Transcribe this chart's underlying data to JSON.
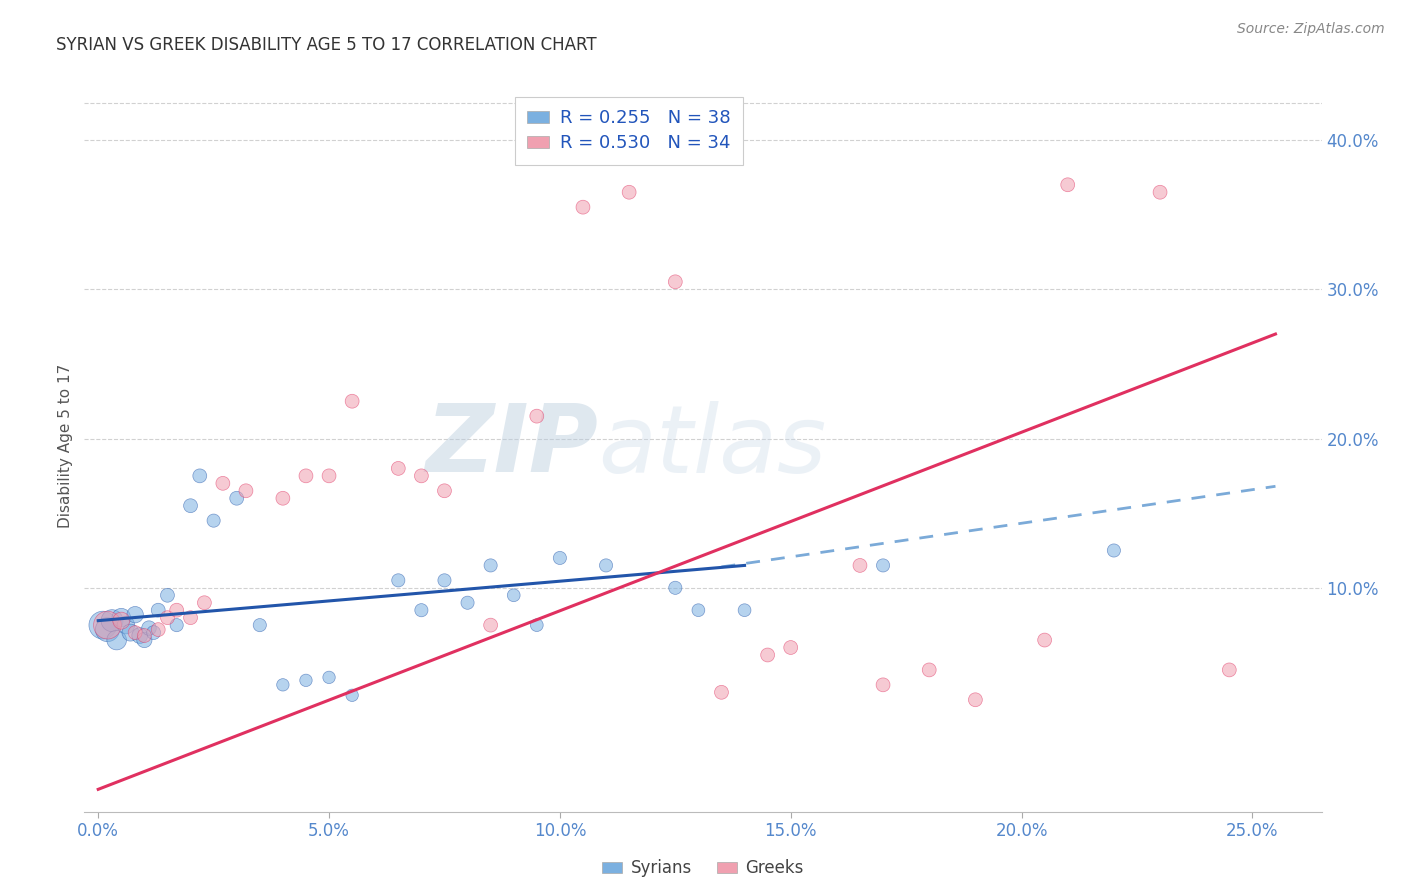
{
  "title": "SYRIAN VS GREEK DISABILITY AGE 5 TO 17 CORRELATION CHART",
  "source": "Source: ZipAtlas.com",
  "xlabel_ticks": [
    "0.0%",
    "5.0%",
    "10.0%",
    "15.0%",
    "20.0%",
    "25.0%"
  ],
  "xlabel_vals": [
    0.0,
    5.0,
    10.0,
    15.0,
    20.0,
    25.0
  ],
  "ylabel_right_ticks": [
    "10.0%",
    "20.0%",
    "30.0%",
    "40.0%"
  ],
  "ylabel_right_vals": [
    10.0,
    20.0,
    30.0,
    40.0
  ],
  "ylabel_left": "Disability Age 5 to 17",
  "xlim": [
    -0.3,
    26.5
  ],
  "ylim": [
    -5.0,
    44.0
  ],
  "legend_r_blue": "R = 0.255",
  "legend_n_blue": "N = 38",
  "legend_r_pink": "R = 0.530",
  "legend_n_pink": "N = 34",
  "syrians_x": [
    0.1,
    0.2,
    0.3,
    0.4,
    0.5,
    0.6,
    0.7,
    0.8,
    0.9,
    1.0,
    1.1,
    1.2,
    1.3,
    1.5,
    1.7,
    2.0,
    2.2,
    2.5,
    3.0,
    3.5,
    4.0,
    4.5,
    5.0,
    5.5,
    6.5,
    7.0,
    7.5,
    8.0,
    8.5,
    9.0,
    9.5,
    10.0,
    11.0,
    12.5,
    13.0,
    14.0,
    17.0,
    22.0
  ],
  "syrians_y": [
    7.5,
    7.2,
    7.8,
    6.5,
    8.0,
    7.5,
    7.0,
    8.2,
    6.8,
    6.5,
    7.3,
    7.0,
    8.5,
    9.5,
    7.5,
    15.5,
    17.5,
    14.5,
    16.0,
    7.5,
    3.5,
    3.8,
    4.0,
    2.8,
    10.5,
    8.5,
    10.5,
    9.0,
    11.5,
    9.5,
    7.5,
    12.0,
    11.5,
    10.0,
    8.5,
    8.5,
    11.5,
    12.5
  ],
  "syrians_size": [
    400,
    300,
    250,
    200,
    180,
    160,
    150,
    140,
    130,
    120,
    110,
    100,
    100,
    100,
    90,
    100,
    100,
    90,
    100,
    90,
    80,
    80,
    80,
    80,
    90,
    90,
    90,
    90,
    90,
    85,
    85,
    90,
    90,
    90,
    85,
    85,
    90,
    90
  ],
  "greeks_x": [
    0.2,
    0.5,
    0.8,
    1.0,
    1.3,
    1.5,
    1.7,
    2.0,
    2.3,
    2.7,
    3.2,
    4.0,
    4.5,
    5.0,
    5.5,
    6.5,
    7.0,
    7.5,
    8.5,
    9.5,
    10.5,
    11.5,
    12.5,
    13.5,
    14.5,
    15.0,
    16.5,
    17.0,
    18.0,
    19.0,
    20.5,
    21.0,
    23.0,
    24.5
  ],
  "greeks_y": [
    7.5,
    7.8,
    7.0,
    6.8,
    7.2,
    8.0,
    8.5,
    8.0,
    9.0,
    17.0,
    16.5,
    16.0,
    17.5,
    17.5,
    22.5,
    18.0,
    17.5,
    16.5,
    7.5,
    21.5,
    35.5,
    36.5,
    30.5,
    3.0,
    5.5,
    6.0,
    11.5,
    3.5,
    4.5,
    2.5,
    6.5,
    37.0,
    36.5,
    4.5
  ],
  "greeks_size": [
    400,
    150,
    100,
    100,
    100,
    100,
    100,
    100,
    100,
    100,
    100,
    100,
    100,
    100,
    100,
    100,
    100,
    100,
    100,
    100,
    100,
    100,
    100,
    100,
    100,
    100,
    100,
    100,
    100,
    100,
    100,
    100,
    100,
    100
  ],
  "blue_color": "#7bb0e0",
  "pink_color": "#f0a0b0",
  "blue_solid_color": "#2255aa",
  "pink_solid_color": "#e03060",
  "blue_dash_color": "#7baad8",
  "watermark_text": "ZIPatlas",
  "background_color": "#ffffff",
  "grid_color": "#cccccc",
  "blue_trend_x0": 0.0,
  "blue_trend_x1": 14.0,
  "blue_trend_y0": 7.8,
  "blue_trend_y1": 11.5,
  "blue_dash_x0": 13.5,
  "blue_dash_x1": 25.5,
  "blue_dash_y0": 11.4,
  "blue_dash_y1": 16.8,
  "pink_trend_x0": 0.0,
  "pink_trend_x1": 25.5,
  "pink_trend_y0": -3.5,
  "pink_trend_y1": 27.0
}
